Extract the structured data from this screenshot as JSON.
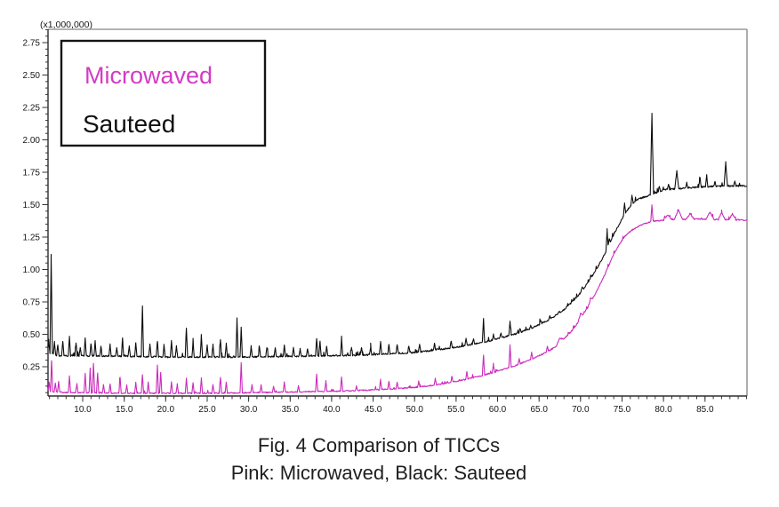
{
  "chart": {
    "scale_label": "(x1,000,000)"
  },
  "legend": {
    "items": [
      {
        "label": "Microwaved",
        "color": "#d13cc4"
      },
      {
        "label": "Sauteed",
        "color": "#101010"
      }
    ]
  },
  "caption": {
    "line1": "Fig. 4 Comparison of TICCs",
    "line2": "Pink: Microwaved, Black: Sauteed"
  },
  "chart_data": {
    "type": "line",
    "title": "Fig. 4 Comparison of TICCs",
    "legend_position": "top-left",
    "grid": false,
    "x_axis": {
      "min": 5.82,
      "max": 90.06,
      "minor_step": 1,
      "major_ticks": [
        {
          "v": 10,
          "label": "10.0"
        },
        {
          "v": 15,
          "label": "15.0"
        },
        {
          "v": 20,
          "label": "20.0"
        },
        {
          "v": 25,
          "label": "25.0"
        },
        {
          "v": 30,
          "label": "30.0"
        },
        {
          "v": 35,
          "label": "35.0"
        },
        {
          "v": 40,
          "label": "40.0"
        },
        {
          "v": 45,
          "label": "45.0"
        },
        {
          "v": 50,
          "label": "50.0"
        },
        {
          "v": 55,
          "label": "55.0"
        },
        {
          "v": 60,
          "label": "60.0"
        },
        {
          "v": 65,
          "label": "65.0"
        },
        {
          "v": 70,
          "label": "70.0"
        },
        {
          "v": 75,
          "label": "75.0"
        },
        {
          "v": 80,
          "label": "80.0"
        },
        {
          "v": 85,
          "label": "85.0"
        }
      ]
    },
    "y_axis": {
      "min": 0.024,
      "max": 2.853,
      "minor_step": 0.05,
      "scale_label": "(x1,000,000)",
      "major_ticks": [
        {
          "v": 0.25,
          "label": "0.25"
        },
        {
          "v": 0.5,
          "label": "0.50"
        },
        {
          "v": 0.75,
          "label": "0.75"
        },
        {
          "v": 1.0,
          "label": "1.00"
        },
        {
          "v": 1.25,
          "label": "1.25"
        },
        {
          "v": 1.5,
          "label": "1.50"
        },
        {
          "v": 1.75,
          "label": "1.75"
        },
        {
          "v": 2.0,
          "label": "2.00"
        },
        {
          "v": 2.25,
          "label": "2.25"
        },
        {
          "v": 2.5,
          "label": "2.50"
        },
        {
          "v": 2.75,
          "label": "2.75"
        }
      ]
    },
    "series": [
      {
        "name": "Sauteed",
        "color": "#0d0d0d",
        "baseline": [
          [
            5.82,
            0.36
          ],
          [
            7,
            0.335
          ],
          [
            10,
            0.335
          ],
          [
            15,
            0.33
          ],
          [
            20,
            0.325
          ],
          [
            25,
            0.325
          ],
          [
            30,
            0.325
          ],
          [
            35,
            0.33
          ],
          [
            40,
            0.335
          ],
          [
            44,
            0.34
          ],
          [
            47,
            0.35
          ],
          [
            50,
            0.36
          ],
          [
            52,
            0.375
          ],
          [
            54,
            0.39
          ],
          [
            56,
            0.41
          ],
          [
            58,
            0.435
          ],
          [
            60,
            0.465
          ],
          [
            62,
            0.5
          ],
          [
            64,
            0.545
          ],
          [
            66,
            0.605
          ],
          [
            67,
            0.645
          ],
          [
            68,
            0.69
          ],
          [
            69,
            0.75
          ],
          [
            70,
            0.82
          ],
          [
            71,
            0.91
          ],
          [
            72,
            1.01
          ],
          [
            73,
            1.13
          ],
          [
            74,
            1.27
          ],
          [
            75,
            1.39
          ],
          [
            75.5,
            1.445
          ],
          [
            76,
            1.49
          ],
          [
            76.5,
            1.525
          ],
          [
            77,
            1.545
          ],
          [
            78,
            1.565
          ],
          [
            79,
            1.59
          ],
          [
            80,
            1.615
          ],
          [
            82,
            1.625
          ],
          [
            84,
            1.635
          ],
          [
            86,
            1.64
          ],
          [
            88,
            1.645
          ],
          [
            90.06,
            1.645
          ]
        ],
        "peaks": [
          [
            5.9,
            0.45
          ],
          [
            6.2,
            1.12
          ],
          [
            6.6,
            0.44
          ],
          [
            7.0,
            0.42
          ],
          [
            7.6,
            0.45
          ],
          [
            8.4,
            0.48
          ],
          [
            9.2,
            0.43
          ],
          [
            9.7,
            0.4
          ],
          [
            10.3,
            0.47
          ],
          [
            11.0,
            0.43
          ],
          [
            11.5,
            0.45
          ],
          [
            12.2,
            0.41
          ],
          [
            13.3,
            0.42
          ],
          [
            14.1,
            0.4
          ],
          [
            14.8,
            0.47
          ],
          [
            15.6,
            0.41
          ],
          [
            16.4,
            0.44
          ],
          [
            17.2,
            0.72
          ],
          [
            18.1,
            0.43
          ],
          [
            19.0,
            0.45
          ],
          [
            19.8,
            0.42
          ],
          [
            20.7,
            0.45
          ],
          [
            21.3,
            0.41
          ],
          [
            22.5,
            0.55
          ],
          [
            23.3,
            0.44
          ],
          [
            24.3,
            0.5
          ],
          [
            25.0,
            0.42
          ],
          [
            25.7,
            0.42
          ],
          [
            26.6,
            0.46
          ],
          [
            27.3,
            0.43
          ],
          [
            28.6,
            0.62
          ],
          [
            29.1,
            0.55
          ],
          [
            30.3,
            0.41
          ],
          [
            31.3,
            0.41
          ],
          [
            32.2,
            0.4
          ],
          [
            33.2,
            0.4
          ],
          [
            34.3,
            0.42
          ],
          [
            35.4,
            0.4
          ],
          [
            36.2,
            0.39
          ],
          [
            37.1,
            0.39
          ],
          [
            38.2,
            0.47
          ],
          [
            38.6,
            0.45
          ],
          [
            39.4,
            0.41
          ],
          [
            41.2,
            0.46
          ],
          [
            42.4,
            0.4
          ],
          [
            43.6,
            0.4
          ],
          [
            44.7,
            0.4
          ],
          [
            45.9,
            0.44
          ],
          [
            46.9,
            0.42
          ],
          [
            47.9,
            0.42
          ],
          [
            49.3,
            0.41
          ],
          [
            50.6,
            0.42
          ],
          [
            52.4,
            0.43
          ],
          [
            54.4,
            0.45
          ],
          [
            56.2,
            0.47
          ],
          [
            57.1,
            0.46
          ],
          [
            58.3,
            0.62
          ],
          [
            59.5,
            0.5
          ],
          [
            60.4,
            0.51
          ],
          [
            61.5,
            0.6
          ],
          [
            62.7,
            0.54
          ],
          [
            64.0,
            0.57
          ],
          [
            65.2,
            0.6
          ],
          [
            66.3,
            0.64
          ],
          [
            67.4,
            0.68
          ],
          [
            68.6,
            0.73
          ],
          [
            70.2,
            0.86
          ],
          [
            71.3,
            0.95
          ],
          [
            73.2,
            1.3
          ],
          [
            73.45,
            1.24
          ],
          [
            75.3,
            1.51
          ],
          [
            76.2,
            1.57
          ],
          [
            78.6,
            2.2,
            0.2
          ],
          [
            79.5,
            1.64
          ],
          [
            80.6,
            1.66
          ],
          [
            81.6,
            1.76,
            0.25
          ],
          [
            82.8,
            1.67
          ],
          [
            84.4,
            1.71
          ],
          [
            85.2,
            1.73
          ],
          [
            86.2,
            1.68
          ],
          [
            87.5,
            1.83,
            0.2
          ],
          [
            88.6,
            1.68
          ]
        ]
      },
      {
        "name": "Microwaved",
        "color": "#cb2abc",
        "baseline": [
          [
            5.82,
            0.06
          ],
          [
            8,
            0.05
          ],
          [
            12,
            0.048
          ],
          [
            16,
            0.045
          ],
          [
            20,
            0.045
          ],
          [
            25,
            0.045
          ],
          [
            30,
            0.05
          ],
          [
            35,
            0.055
          ],
          [
            40,
            0.06
          ],
          [
            44,
            0.068
          ],
          [
            47,
            0.078
          ],
          [
            50,
            0.09
          ],
          [
            52,
            0.105
          ],
          [
            54,
            0.125
          ],
          [
            56,
            0.15
          ],
          [
            58,
            0.18
          ],
          [
            60,
            0.215
          ],
          [
            62,
            0.255
          ],
          [
            64,
            0.305
          ],
          [
            66,
            0.365
          ],
          [
            67,
            0.405
          ],
          [
            67.6,
            0.445
          ],
          [
            68,
            0.465
          ],
          [
            69,
            0.53
          ],
          [
            70,
            0.62
          ],
          [
            71,
            0.72
          ],
          [
            72,
            0.84
          ],
          [
            73,
            0.97
          ],
          [
            73.6,
            1.06
          ],
          [
            74,
            1.12
          ],
          [
            75,
            1.225
          ],
          [
            76,
            1.295
          ],
          [
            77,
            1.335
          ],
          [
            78,
            1.36
          ],
          [
            79,
            1.375
          ],
          [
            80,
            1.38
          ],
          [
            82,
            1.385
          ],
          [
            84,
            1.39
          ],
          [
            86,
            1.385
          ],
          [
            88,
            1.385
          ],
          [
            90.06,
            1.38
          ]
        ],
        "peaks": [
          [
            5.95,
            0.13
          ],
          [
            6.25,
            0.3
          ],
          [
            6.7,
            0.12
          ],
          [
            7.1,
            0.14
          ],
          [
            8.4,
            0.18
          ],
          [
            9.3,
            0.12
          ],
          [
            10.3,
            0.2
          ],
          [
            10.9,
            0.24
          ],
          [
            11.3,
            0.28
          ],
          [
            11.8,
            0.2
          ],
          [
            12.5,
            0.11
          ],
          [
            13.3,
            0.12
          ],
          [
            14.5,
            0.17
          ],
          [
            15.3,
            0.11
          ],
          [
            16.4,
            0.13
          ],
          [
            17.2,
            0.19
          ],
          [
            17.9,
            0.13
          ],
          [
            19.0,
            0.26
          ],
          [
            19.4,
            0.21
          ],
          [
            20.7,
            0.13
          ],
          [
            21.4,
            0.11
          ],
          [
            22.5,
            0.16
          ],
          [
            23.3,
            0.13
          ],
          [
            24.3,
            0.16
          ],
          [
            25.7,
            0.11
          ],
          [
            26.6,
            0.17
          ],
          [
            27.3,
            0.13
          ],
          [
            29.1,
            0.28
          ],
          [
            30.4,
            0.11
          ],
          [
            31.5,
            0.11
          ],
          [
            33.0,
            0.1
          ],
          [
            34.3,
            0.13
          ],
          [
            36.0,
            0.1
          ],
          [
            38.2,
            0.19
          ],
          [
            39.3,
            0.13
          ],
          [
            41.2,
            0.17
          ],
          [
            43.0,
            0.1
          ],
          [
            45.9,
            0.15
          ],
          [
            46.9,
            0.14
          ],
          [
            47.9,
            0.13
          ],
          [
            50.5,
            0.14
          ],
          [
            52.5,
            0.16
          ],
          [
            54.5,
            0.18
          ],
          [
            56.3,
            0.21
          ],
          [
            58.3,
            0.34
          ],
          [
            59.5,
            0.27
          ],
          [
            61.5,
            0.42
          ],
          [
            62.6,
            0.31
          ],
          [
            64.1,
            0.36
          ],
          [
            66.0,
            0.41
          ],
          [
            67.5,
            0.47,
            0.4
          ],
          [
            70.0,
            0.66,
            0.3
          ],
          [
            71.2,
            0.77,
            0.3
          ],
          [
            73.4,
            1.03,
            0.4
          ],
          [
            75.4,
            1.26,
            0.4
          ],
          [
            78.6,
            1.5,
            0.15
          ],
          [
            80.5,
            1.42,
            0.5
          ],
          [
            81.8,
            1.46,
            0.5
          ],
          [
            83.2,
            1.43,
            0.5
          ],
          [
            85.6,
            1.44,
            0.5
          ],
          [
            87.0,
            1.44,
            0.4
          ],
          [
            88.3,
            1.43,
            0.4
          ]
        ]
      }
    ]
  }
}
